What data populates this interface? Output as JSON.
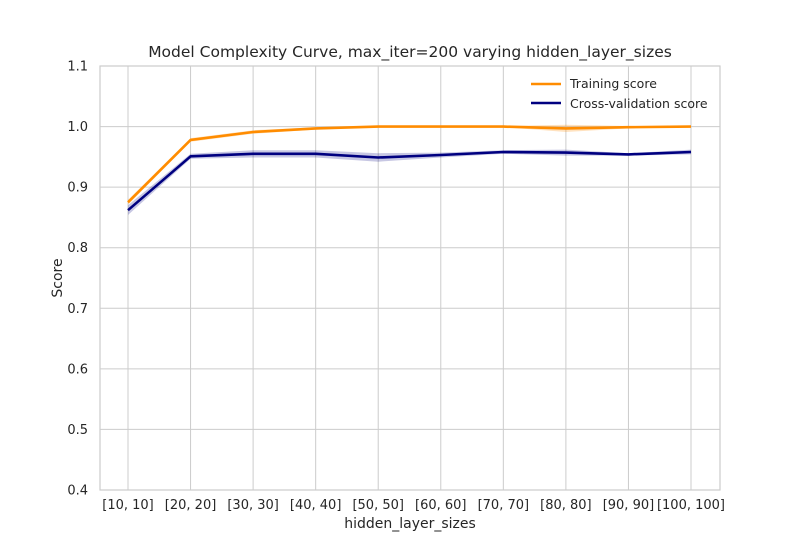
{
  "chart_data": {
    "type": "line",
    "title": "Model Complexity Curve, max_iter=200 varying hidden_layer_sizes",
    "xlabel": "hidden_layer_sizes",
    "ylabel": "Score",
    "categories": [
      "[10, 10]",
      "[20, 20]",
      "[30, 30]",
      "[40, 40]",
      "[50, 50]",
      "[60, 60]",
      "[70, 70]",
      "[80, 80]",
      "[90, 90]",
      "[100, 100]"
    ],
    "ylim": [
      0.4,
      1.1
    ],
    "yticks": [
      "0.4",
      "0.5",
      "0.6",
      "0.7",
      "0.8",
      "0.9",
      "1.0",
      "1.1"
    ],
    "grid": true,
    "legend_position": "top-right",
    "series": [
      {
        "name": "Training score",
        "color": "#ff8c00",
        "values": [
          0.875,
          0.978,
          0.991,
          0.997,
          1.0,
          1.0,
          1.0,
          0.997,
          0.999,
          1.0
        ],
        "band": [
          0.004,
          0.003,
          0.003,
          0.002,
          0.001,
          0.001,
          0.001,
          0.006,
          0.002,
          0.001
        ]
      },
      {
        "name": "Cross-validation score",
        "color": "#000080",
        "values": [
          0.862,
          0.951,
          0.955,
          0.955,
          0.949,
          0.953,
          0.958,
          0.957,
          0.954,
          0.958
        ],
        "band": [
          0.008,
          0.004,
          0.006,
          0.006,
          0.007,
          0.004,
          0.003,
          0.005,
          0.002,
          0.004
        ]
      }
    ]
  }
}
